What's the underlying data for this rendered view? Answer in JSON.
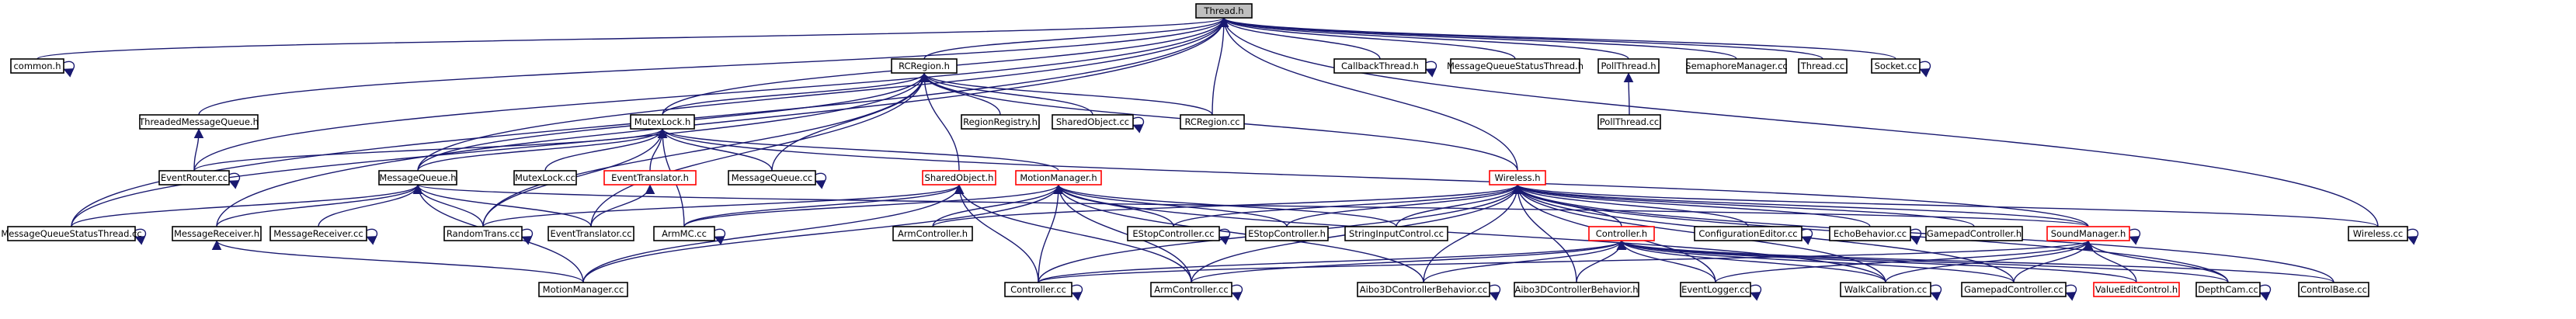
{
  "colors": {
    "edge": "#191970",
    "node_border": "#000000",
    "root_fill": "#bfbfbf",
    "node_fill": "#ffffff",
    "red_border": "#ff0000"
  },
  "nodes": [
    {
      "id": "thread_h",
      "label": "Thread.h",
      "style": "root"
    },
    {
      "id": "common_h",
      "label": "common.h",
      "style": "normal"
    },
    {
      "id": "threaded_mq_h",
      "label": "ThreadedMessageQueue.h",
      "style": "normal"
    },
    {
      "id": "event_router_cc",
      "label": "EventRouter.cc",
      "style": "normal"
    },
    {
      "id": "rcregion_h",
      "label": "RCRegion.h",
      "style": "normal"
    },
    {
      "id": "region_registry_h",
      "label": "RegionRegistry.h",
      "style": "normal"
    },
    {
      "id": "shared_object_cc",
      "label": "SharedObject.cc",
      "style": "normal"
    },
    {
      "id": "rcregion_cc",
      "label": "RCRegion.cc",
      "style": "normal"
    },
    {
      "id": "callback_thread_h",
      "label": "CallbackThread.h",
      "style": "normal"
    },
    {
      "id": "mq_status_thread_h",
      "label": "MessageQueueStatusThread.h",
      "style": "normal"
    },
    {
      "id": "poll_thread_h",
      "label": "PollThread.h",
      "style": "normal"
    },
    {
      "id": "poll_thread_cc",
      "label": "PollThread.cc",
      "style": "normal"
    },
    {
      "id": "semaphore_manager_cc",
      "label": "SemaphoreManager.cc",
      "style": "normal"
    },
    {
      "id": "thread_cc",
      "label": "Thread.cc",
      "style": "normal"
    },
    {
      "id": "socket_cc",
      "label": "Socket.cc",
      "style": "normal"
    },
    {
      "id": "mutex_lock_h",
      "label": "MutexLock.h",
      "style": "normal"
    },
    {
      "id": "message_queue_h",
      "label": "MessageQueue.h",
      "style": "normal"
    },
    {
      "id": "mutex_lock_cc",
      "label": "MutexLock.cc",
      "style": "normal"
    },
    {
      "id": "event_translator_h",
      "label": "EventTranslator.h",
      "style": "red"
    },
    {
      "id": "message_queue_cc",
      "label": "MessageQueue.cc",
      "style": "normal"
    },
    {
      "id": "shared_object_h",
      "label": "SharedObject.h",
      "style": "red"
    },
    {
      "id": "motion_manager_h",
      "label": "MotionManager.h",
      "style": "red"
    },
    {
      "id": "wireless_h",
      "label": "Wireless.h",
      "style": "red"
    },
    {
      "id": "mq_status_thread_cc",
      "label": "MessageQueueStatusThread.cc",
      "style": "normal"
    },
    {
      "id": "message_receiver_h",
      "label": "MessageReceiver.h",
      "style": "normal"
    },
    {
      "id": "message_receiver_cc",
      "label": "MessageReceiver.cc",
      "style": "normal"
    },
    {
      "id": "random_trans_cc",
      "label": "RandomTrans.cc",
      "style": "normal"
    },
    {
      "id": "event_translator_cc",
      "label": "EventTranslator.cc",
      "style": "normal"
    },
    {
      "id": "armmc_cc",
      "label": "ArmMC.cc",
      "style": "normal"
    },
    {
      "id": "arm_controller_h",
      "label": "ArmController.h",
      "style": "normal"
    },
    {
      "id": "estop_controller_cc",
      "label": "EStopController.cc",
      "style": "normal"
    },
    {
      "id": "estop_controller_h",
      "label": "EStopController.h",
      "style": "normal"
    },
    {
      "id": "string_input_control_cc",
      "label": "StringInputControl.cc",
      "style": "normal"
    },
    {
      "id": "controller_h",
      "label": "Controller.h",
      "style": "red"
    },
    {
      "id": "configuration_editor_cc",
      "label": "ConfigurationEditor.cc",
      "style": "normal"
    },
    {
      "id": "echo_behavior_cc",
      "label": "EchoBehavior.cc",
      "style": "normal"
    },
    {
      "id": "gamepad_controller_h",
      "label": "GamepadController.h",
      "style": "normal"
    },
    {
      "id": "sound_manager_h",
      "label": "SoundManager.h",
      "style": "red"
    },
    {
      "id": "wireless_cc",
      "label": "Wireless.cc",
      "style": "normal"
    },
    {
      "id": "motion_manager_cc",
      "label": "MotionManager.cc",
      "style": "normal"
    },
    {
      "id": "controller_cc",
      "label": "Controller.cc",
      "style": "normal"
    },
    {
      "id": "arm_controller_cc",
      "label": "ArmController.cc",
      "style": "normal"
    },
    {
      "id": "aibo3d_behavior_cc",
      "label": "Aibo3DControllerBehavior.cc",
      "style": "normal"
    },
    {
      "id": "aibo3d_behavior_h",
      "label": "Aibo3DControllerBehavior.h",
      "style": "normal"
    },
    {
      "id": "event_logger_cc",
      "label": "EventLogger.cc",
      "style": "normal"
    },
    {
      "id": "walk_calibration_cc",
      "label": "WalkCalibration.cc",
      "style": "normal"
    },
    {
      "id": "gamepad_controller_cc",
      "label": "GamepadController.cc",
      "style": "normal"
    },
    {
      "id": "value_edit_control_h",
      "label": "ValueEditControl.h",
      "style": "red"
    },
    {
      "id": "depth_cam_cc",
      "label": "DepthCam.cc",
      "style": "normal"
    },
    {
      "id": "control_base_cc",
      "label": "ControlBase.cc",
      "style": "normal"
    }
  ],
  "edges": [
    [
      "common_h",
      "thread_h"
    ],
    [
      "threaded_mq_h",
      "thread_h"
    ],
    [
      "event_router_cc",
      "thread_h"
    ],
    [
      "rcregion_h",
      "thread_h"
    ],
    [
      "callback_thread_h",
      "thread_h"
    ],
    [
      "mq_status_thread_h",
      "thread_h"
    ],
    [
      "poll_thread_h",
      "thread_h"
    ],
    [
      "semaphore_manager_cc",
      "thread_h"
    ],
    [
      "thread_cc",
      "thread_h"
    ],
    [
      "socket_cc",
      "thread_h"
    ],
    [
      "mutex_lock_h",
      "thread_h"
    ],
    [
      "message_queue_h",
      "thread_h"
    ],
    [
      "wireless_h",
      "thread_h"
    ],
    [
      "mq_status_thread_cc",
      "thread_h"
    ],
    [
      "message_receiver_h",
      "thread_h"
    ],
    [
      "wireless_cc",
      "thread_h"
    ],
    [
      "rcregion_cc",
      "thread_h"
    ],
    [
      "event_router_cc",
      "threaded_mq_h"
    ],
    [
      "poll_thread_cc",
      "poll_thread_h"
    ],
    [
      "region_registry_h",
      "rcregion_h"
    ],
    [
      "shared_object_cc",
      "rcregion_h"
    ],
    [
      "rcregion_cc",
      "rcregion_h"
    ],
    [
      "mutex_lock_h",
      "rcregion_h"
    ],
    [
      "message_queue_h",
      "rcregion_h"
    ],
    [
      "message_queue_cc",
      "rcregion_h"
    ],
    [
      "shared_object_h",
      "rcregion_h"
    ],
    [
      "random_trans_cc",
      "rcregion_h"
    ],
    [
      "wireless_h",
      "rcregion_h"
    ],
    [
      "mq_status_thread_cc",
      "rcregion_h"
    ],
    [
      "event_translator_cc",
      "rcregion_h"
    ],
    [
      "mutex_lock_cc",
      "mutex_lock_h"
    ],
    [
      "event_translator_h",
      "mutex_lock_h"
    ],
    [
      "message_queue_cc",
      "mutex_lock_h"
    ],
    [
      "motion_manager_h",
      "mutex_lock_h"
    ],
    [
      "random_trans_cc",
      "mutex_lock_h"
    ],
    [
      "event_router_cc",
      "mutex_lock_h"
    ],
    [
      "sound_manager_h",
      "mutex_lock_h"
    ],
    [
      "message_queue_h",
      "mutex_lock_h"
    ],
    [
      "armmc_cc",
      "mutex_lock_h"
    ],
    [
      "event_translator_cc",
      "event_translator_h"
    ],
    [
      "mq_status_thread_cc",
      "message_queue_h"
    ],
    [
      "message_receiver_h",
      "message_queue_h"
    ],
    [
      "message_receiver_cc",
      "message_queue_h"
    ],
    [
      "random_trans_cc",
      "message_queue_h"
    ],
    [
      "event_translator_cc",
      "message_queue_h"
    ],
    [
      "motion_manager_cc",
      "message_queue_h"
    ],
    [
      "sound_manager_h",
      "message_queue_h"
    ],
    [
      "motion_manager_cc",
      "message_receiver_h"
    ],
    [
      "random_trans_cc",
      "shared_object_h"
    ],
    [
      "armmc_cc",
      "shared_object_h"
    ],
    [
      "motion_manager_cc",
      "shared_object_h"
    ],
    [
      "controller_cc",
      "shared_object_h"
    ],
    [
      "arm_controller_cc",
      "shared_object_h"
    ],
    [
      "armmc_cc",
      "motion_manager_h"
    ],
    [
      "arm_controller_h",
      "motion_manager_h"
    ],
    [
      "estop_controller_cc",
      "motion_manager_h"
    ],
    [
      "estop_controller_h",
      "motion_manager_h"
    ],
    [
      "string_input_control_cc",
      "motion_manager_h"
    ],
    [
      "motion_manager_cc",
      "motion_manager_h"
    ],
    [
      "controller_cc",
      "motion_manager_h"
    ],
    [
      "arm_controller_cc",
      "motion_manager_h"
    ],
    [
      "aibo3d_behavior_cc",
      "motion_manager_h"
    ],
    [
      "walk_calibration_cc",
      "motion_manager_h"
    ],
    [
      "arm_controller_h",
      "wireless_h"
    ],
    [
      "estop_controller_cc",
      "wireless_h"
    ],
    [
      "estop_controller_h",
      "wireless_h"
    ],
    [
      "string_input_control_cc",
      "wireless_h"
    ],
    [
      "controller_h",
      "wireless_h"
    ],
    [
      "configuration_editor_cc",
      "wireless_h"
    ],
    [
      "echo_behavior_cc",
      "wireless_h"
    ],
    [
      "gamepad_controller_h",
      "wireless_h"
    ],
    [
      "sound_manager_h",
      "wireless_h"
    ],
    [
      "wireless_cc",
      "wireless_h"
    ],
    [
      "controller_cc",
      "wireless_h"
    ],
    [
      "arm_controller_cc",
      "wireless_h"
    ],
    [
      "aibo3d_behavior_cc",
      "wireless_h"
    ],
    [
      "aibo3d_behavior_h",
      "wireless_h"
    ],
    [
      "event_logger_cc",
      "wireless_h"
    ],
    [
      "walk_calibration_cc",
      "wireless_h"
    ],
    [
      "gamepad_controller_cc",
      "wireless_h"
    ],
    [
      "depth_cam_cc",
      "wireless_h"
    ],
    [
      "control_base_cc",
      "wireless_h"
    ],
    [
      "controller_cc",
      "controller_h"
    ],
    [
      "arm_controller_cc",
      "controller_h"
    ],
    [
      "aibo3d_behavior_cc",
      "controller_h"
    ],
    [
      "aibo3d_behavior_h",
      "controller_h"
    ],
    [
      "event_logger_cc",
      "controller_h"
    ],
    [
      "walk_calibration_cc",
      "controller_h"
    ],
    [
      "gamepad_controller_cc",
      "controller_h"
    ],
    [
      "value_edit_control_h",
      "controller_h"
    ],
    [
      "depth_cam_cc",
      "controller_h"
    ],
    [
      "control_base_cc",
      "controller_h"
    ],
    [
      "controller_cc",
      "sound_manager_h"
    ],
    [
      "event_logger_cc",
      "sound_manager_h"
    ],
    [
      "walk_calibration_cc",
      "sound_manager_h"
    ],
    [
      "gamepad_controller_cc",
      "sound_manager_h"
    ],
    [
      "value_edit_control_h",
      "sound_manager_h"
    ],
    [
      "depth_cam_cc",
      "sound_manager_h"
    ]
  ],
  "self_loops": [
    "common_h",
    "event_router_cc",
    "callback_thread_h",
    "socket_cc",
    "shared_object_cc",
    "message_queue_cc",
    "mq_status_thread_cc",
    "message_receiver_cc",
    "random_trans_cc",
    "armmc_cc",
    "estop_controller_cc",
    "configuration_editor_cc",
    "echo_behavior_cc",
    "sound_manager_h",
    "wireless_cc",
    "controller_cc",
    "arm_controller_cc",
    "aibo3d_behavior_cc",
    "event_logger_cc",
    "walk_calibration_cc",
    "gamepad_controller_cc",
    "depth_cam_cc"
  ]
}
